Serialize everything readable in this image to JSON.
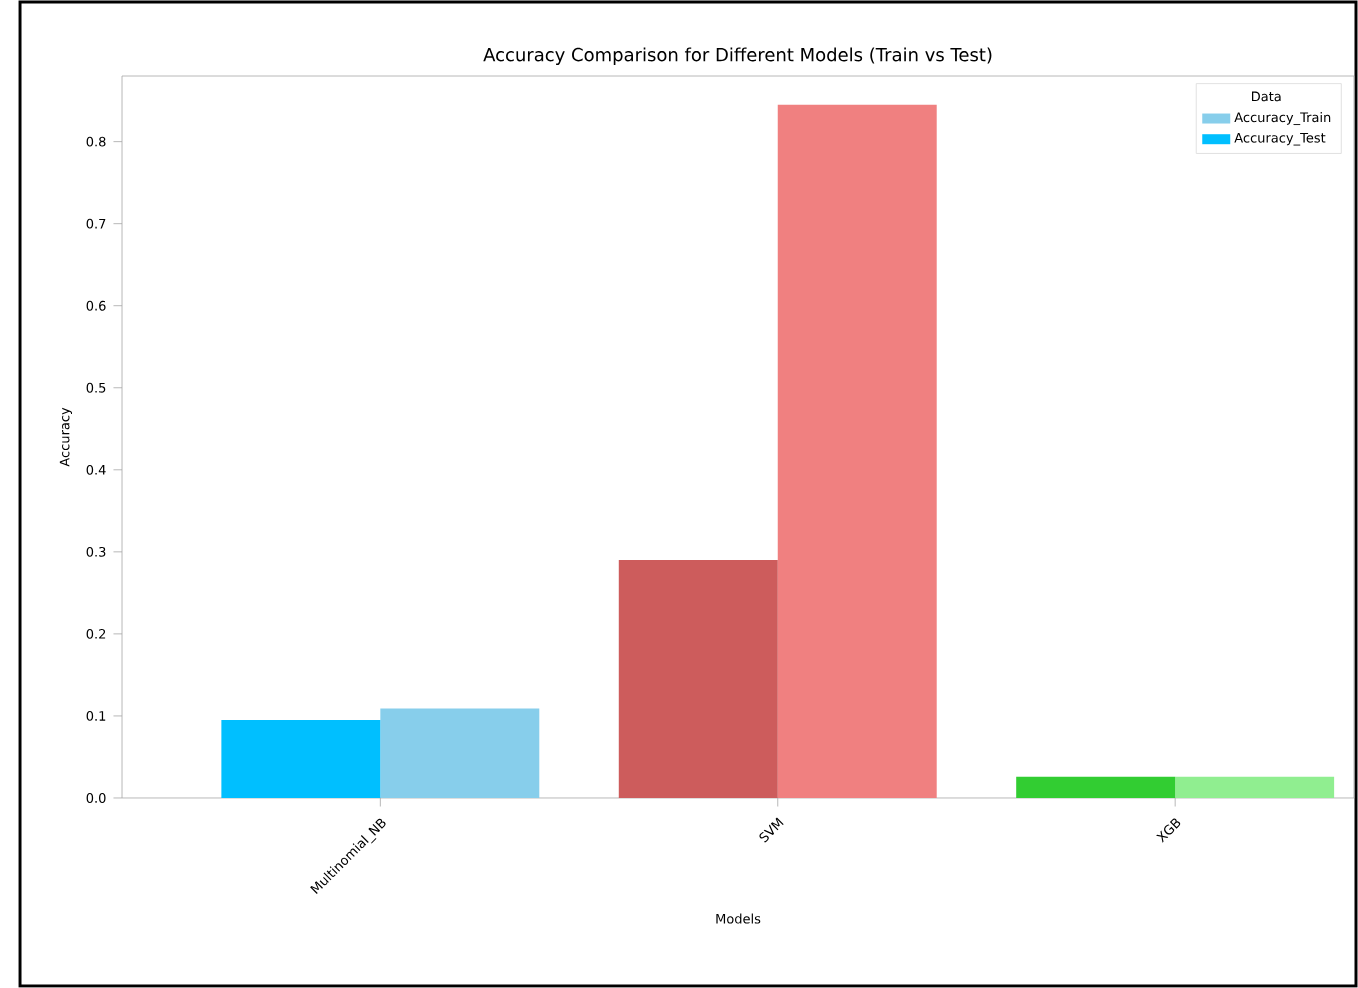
{
  "chart_data": {
    "type": "bar",
    "title": "Accuracy Comparison for Different Models (Train vs Test)",
    "xlabel": "Models",
    "ylabel": "Accuracy",
    "legend_title": "Data",
    "categories": [
      "Multinomial_NB",
      "SVM",
      "XGB"
    ],
    "series": [
      {
        "name": "Accuracy_Train",
        "color": "#87ceeb",
        "colors": [
          "#87ceeb",
          "#f08080",
          "#90ee90"
        ],
        "values": [
          0.109,
          0.845,
          0.026
        ]
      },
      {
        "name": "Accuracy_Test",
        "color": "#00bfff",
        "colors": [
          "#00bfff",
          "#cd5c5c",
          "#32cd32"
        ],
        "values": [
          0.095,
          0.29,
          0.026
        ]
      }
    ],
    "ylim": [
      0,
      0.88
    ],
    "yticks": [
      {
        "value": 0,
        "label": "0.0"
      },
      0.1,
      0.2,
      0.3,
      0.4,
      0.5,
      0.6,
      0.7,
      0.8
    ],
    "grid": false,
    "legend": "top right"
  }
}
